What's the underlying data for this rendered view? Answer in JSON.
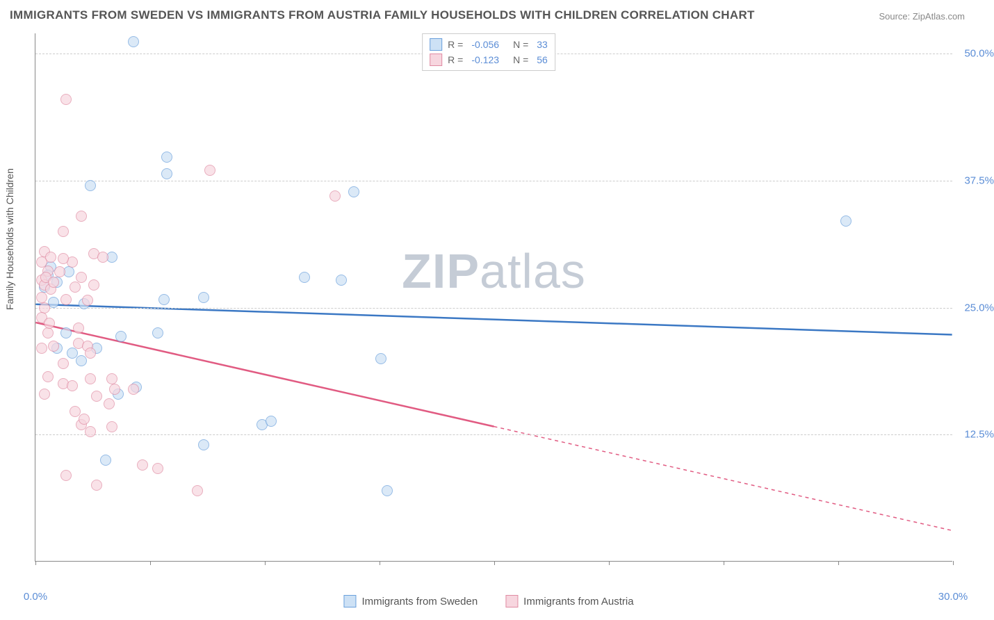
{
  "title": "IMMIGRANTS FROM SWEDEN VS IMMIGRANTS FROM AUSTRIA FAMILY HOUSEHOLDS WITH CHILDREN CORRELATION CHART",
  "source": "Source: ZipAtlas.com",
  "watermark_bold": "ZIP",
  "watermark_rest": "atlas",
  "y_axis_label": "Family Households with Children",
  "x_axis": {
    "min": 0.0,
    "max": 30.0,
    "ticks": [
      0.0,
      3.75,
      7.5,
      11.25,
      15.0,
      18.75,
      22.5,
      26.25,
      30.0
    ],
    "labels": {
      "0": "0.0%",
      "30": "30.0%"
    }
  },
  "y_axis": {
    "min": 0.0,
    "max": 52.0,
    "gridlines": [
      12.5,
      25.0,
      37.5,
      50.0
    ],
    "labels": {
      "12.5": "12.5%",
      "25": "25.0%",
      "37.5": "37.5%",
      "50": "50.0%"
    }
  },
  "series": [
    {
      "name": "Immigrants from Sweden",
      "fill_color": "#cde1f5",
      "stroke_color": "#6aa0dc",
      "line_color": "#3b78c4",
      "r_label": "R =",
      "r_value": "-0.056",
      "n_label": "N =",
      "n_value": "33",
      "trend": {
        "y_at_xmin": 25.3,
        "y_at_xmax": 22.3,
        "solid_until_x": 30.0
      },
      "points": [
        [
          3.2,
          51.2
        ],
        [
          1.8,
          37.0
        ],
        [
          4.3,
          39.8
        ],
        [
          4.3,
          38.2
        ],
        [
          10.4,
          36.4
        ],
        [
          26.5,
          33.5
        ],
        [
          2.5,
          30.0
        ],
        [
          4.2,
          25.8
        ],
        [
          5.5,
          26.0
        ],
        [
          1.6,
          25.4
        ],
        [
          1.0,
          22.5
        ],
        [
          2.8,
          22.2
        ],
        [
          4.0,
          22.5
        ],
        [
          10.0,
          27.7
        ],
        [
          0.7,
          27.5
        ],
        [
          2.0,
          21.0
        ],
        [
          0.7,
          21.0
        ],
        [
          1.2,
          20.5
        ],
        [
          1.5,
          19.8
        ],
        [
          3.3,
          17.2
        ],
        [
          2.7,
          16.5
        ],
        [
          2.3,
          10.0
        ],
        [
          7.4,
          13.5
        ],
        [
          5.5,
          11.5
        ],
        [
          11.3,
          20.0
        ],
        [
          11.5,
          7.0
        ],
        [
          8.8,
          28.0
        ],
        [
          0.5,
          29.0
        ],
        [
          0.4,
          28.2
        ],
        [
          0.3,
          27.0
        ],
        [
          0.6,
          25.5
        ],
        [
          1.1,
          28.5
        ],
        [
          7.7,
          13.8
        ]
      ]
    },
    {
      "name": "Immigrants from Austria",
      "fill_color": "#f7d6df",
      "stroke_color": "#e08ca3",
      "line_color": "#e15b82",
      "r_label": "R =",
      "r_value": "-0.123",
      "n_label": "N =",
      "n_value": "56",
      "trend": {
        "y_at_xmin": 23.5,
        "y_at_xmax": 3.0,
        "solid_until_x": 15.0
      },
      "points": [
        [
          1.0,
          45.5
        ],
        [
          5.7,
          38.5
        ],
        [
          9.8,
          36.0
        ],
        [
          1.5,
          34.0
        ],
        [
          0.9,
          32.5
        ],
        [
          0.3,
          30.5
        ],
        [
          1.9,
          30.3
        ],
        [
          2.2,
          30.0
        ],
        [
          1.2,
          29.5
        ],
        [
          0.4,
          28.6
        ],
        [
          0.8,
          28.5
        ],
        [
          1.5,
          28.0
        ],
        [
          0.2,
          27.7
        ],
        [
          0.3,
          27.2
        ],
        [
          0.5,
          26.8
        ],
        [
          0.2,
          26.0
        ],
        [
          0.3,
          25.0
        ],
        [
          1.7,
          25.7
        ],
        [
          1.4,
          23.0
        ],
        [
          0.4,
          22.5
        ],
        [
          1.4,
          21.5
        ],
        [
          0.6,
          21.2
        ],
        [
          1.7,
          21.2
        ],
        [
          1.8,
          20.5
        ],
        [
          0.4,
          18.2
        ],
        [
          1.8,
          18.0
        ],
        [
          2.5,
          18.0
        ],
        [
          2.6,
          17.0
        ],
        [
          0.9,
          17.5
        ],
        [
          1.2,
          17.3
        ],
        [
          3.2,
          17.0
        ],
        [
          0.3,
          16.5
        ],
        [
          2.0,
          16.3
        ],
        [
          2.4,
          15.5
        ],
        [
          1.3,
          14.8
        ],
        [
          1.5,
          13.5
        ],
        [
          2.5,
          13.3
        ],
        [
          1.8,
          12.8
        ],
        [
          3.5,
          9.5
        ],
        [
          4.0,
          9.2
        ],
        [
          1.0,
          8.5
        ],
        [
          2.0,
          7.5
        ],
        [
          5.3,
          7.0
        ],
        [
          0.2,
          29.5
        ],
        [
          0.5,
          30.0
        ],
        [
          0.9,
          29.8
        ],
        [
          0.2,
          24.0
        ],
        [
          0.45,
          23.5
        ],
        [
          1.0,
          25.8
        ],
        [
          0.35,
          28.0
        ],
        [
          0.6,
          27.5
        ],
        [
          1.3,
          27.0
        ],
        [
          1.9,
          27.2
        ],
        [
          0.2,
          21.0
        ],
        [
          0.9,
          19.5
        ],
        [
          1.6,
          14.0
        ]
      ]
    }
  ],
  "background_color": "#ffffff",
  "grid_color": "#cccccc",
  "tick_color": "#888888",
  "axis_color": "#888888",
  "title_color": "#555555",
  "value_text_color": "#5b8dd6",
  "line_width": 2.5
}
